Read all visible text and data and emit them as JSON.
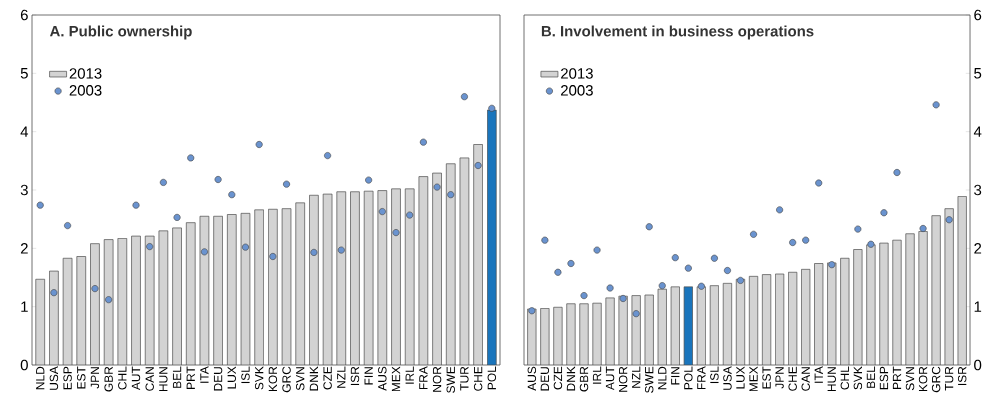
{
  "chart_data": [
    {
      "type": "bar",
      "title": "A. Public ownership",
      "categories": [
        "NLD",
        "USA",
        "ESP",
        "EST",
        "JPN",
        "GBR",
        "CHL",
        "AUT",
        "CAN",
        "HUN",
        "BEL",
        "PRT",
        "ITA",
        "DEU",
        "LUX",
        "ISL",
        "SVK",
        "KOR",
        "GRC",
        "SVN",
        "DNK",
        "CZE",
        "NZL",
        "ISR",
        "FIN",
        "AUS",
        "MEX",
        "IRL",
        "FRA",
        "NOR",
        "SWE",
        "TUR",
        "CHE",
        "POL"
      ],
      "series": [
        {
          "name": "2013",
          "colors": [
            "#d3d3d3",
            "#d3d3d3",
            "#d3d3d3",
            "#d3d3d3",
            "#d3d3d3",
            "#d3d3d3",
            "#d3d3d3",
            "#d3d3d3",
            "#d3d3d3",
            "#d3d3d3",
            "#d3d3d3",
            "#d3d3d3",
            "#d3d3d3",
            "#d3d3d3",
            "#d3d3d3",
            "#d3d3d3",
            "#d3d3d3",
            "#d3d3d3",
            "#d3d3d3",
            "#d3d3d3",
            "#d3d3d3",
            "#d3d3d3",
            "#d3d3d3",
            "#d3d3d3",
            "#d3d3d3",
            "#d3d3d3",
            "#d3d3d3",
            "#d3d3d3",
            "#d3d3d3",
            "#d3d3d3",
            "#d3d3d3",
            "#d3d3d3",
            "#d3d3d3",
            "#1a75bc"
          ],
          "values": [
            1.47,
            1.61,
            1.83,
            1.86,
            2.08,
            2.15,
            2.17,
            2.21,
            2.21,
            2.3,
            2.35,
            2.44,
            2.55,
            2.55,
            2.58,
            2.6,
            2.66,
            2.67,
            2.68,
            2.78,
            2.91,
            2.93,
            2.97,
            2.97,
            2.98,
            2.99,
            3.02,
            3.02,
            3.23,
            3.29,
            3.45,
            3.55,
            3.78,
            4.37
          ]
        },
        {
          "name": "2003",
          "type": "scatter",
          "color": "#6a93cf",
          "values": [
            2.74,
            1.24,
            2.39,
            null,
            1.31,
            1.12,
            null,
            2.74,
            2.03,
            3.13,
            2.53,
            3.55,
            1.94,
            3.18,
            2.92,
            2.02,
            3.78,
            1.86,
            3.1,
            null,
            1.93,
            3.59,
            1.97,
            null,
            3.17,
            2.63,
            2.27,
            2.57,
            3.82,
            3.05,
            2.92,
            4.6,
            3.42,
            4.4
          ]
        }
      ],
      "ylim": [
        0,
        6
      ],
      "yticks": [
        0,
        1,
        2,
        3,
        4,
        5,
        6
      ],
      "legend": "top left",
      "marker": "circle"
    },
    {
      "type": "bar",
      "title": "B. Involvement in business operations",
      "categories": [
        "AUS",
        "DEU",
        "CZE",
        "DNK",
        "GBR",
        "IRL",
        "AUT",
        "NOR",
        "NZL",
        "SWE",
        "NLD",
        "FIN",
        "POL",
        "FRA",
        "ISL",
        "USA",
        "LUX",
        "MEX",
        "EST",
        "JPN",
        "CHE",
        "CAN",
        "ITA",
        "HUN",
        "CHL",
        "SVK",
        "BEL",
        "ESP",
        "PRT",
        "SVN",
        "KOR",
        "GRC",
        "TUR",
        "ISR"
      ],
      "series": [
        {
          "name": "2013",
          "colors": [
            "#d3d3d3",
            "#d3d3d3",
            "#d3d3d3",
            "#d3d3d3",
            "#d3d3d3",
            "#d3d3d3",
            "#d3d3d3",
            "#d3d3d3",
            "#d3d3d3",
            "#d3d3d3",
            "#d3d3d3",
            "#d3d3d3",
            "#1a75bc",
            "#d3d3d3",
            "#d3d3d3",
            "#d3d3d3",
            "#d3d3d3",
            "#d3d3d3",
            "#d3d3d3",
            "#d3d3d3",
            "#d3d3d3",
            "#d3d3d3",
            "#d3d3d3",
            "#d3d3d3",
            "#d3d3d3",
            "#d3d3d3",
            "#d3d3d3",
            "#d3d3d3",
            "#d3d3d3",
            "#d3d3d3",
            "#d3d3d3",
            "#d3d3d3",
            "#d3d3d3",
            "#d3d3d3"
          ],
          "values": [
            0.96,
            0.97,
            0.99,
            1.05,
            1.05,
            1.06,
            1.15,
            1.18,
            1.19,
            1.2,
            1.3,
            1.34,
            1.34,
            1.34,
            1.36,
            1.4,
            1.47,
            1.52,
            1.55,
            1.56,
            1.59,
            1.64,
            1.74,
            1.75,
            1.83,
            1.98,
            2.06,
            2.09,
            2.14,
            2.25,
            2.29,
            2.56,
            2.68,
            2.89
          ]
        },
        {
          "name": "2003",
          "type": "scatter",
          "color": "#6a93cf",
          "values": [
            0.93,
            2.14,
            1.59,
            1.74,
            1.19,
            1.97,
            1.32,
            1.14,
            0.88,
            2.37,
            1.36,
            1.84,
            1.66,
            1.35,
            1.83,
            1.62,
            1.45,
            2.24,
            null,
            2.66,
            2.1,
            2.14,
            3.12,
            1.72,
            null,
            2.33,
            2.07,
            2.61,
            3.3,
            null,
            2.34,
            4.46,
            2.49,
            null
          ]
        }
      ],
      "ylim": [
        0,
        6
      ],
      "yticks": [
        0,
        1,
        2,
        3,
        4,
        5,
        6
      ],
      "legend": "top left",
      "marker": "circle"
    }
  ]
}
